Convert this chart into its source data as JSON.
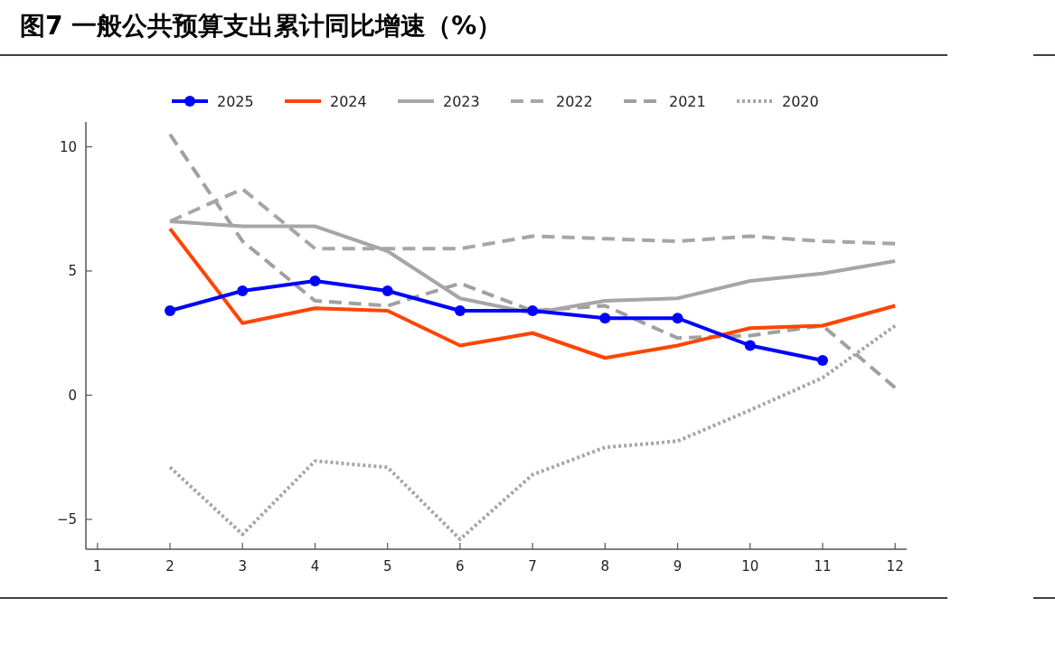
{
  "chart_data": {
    "type": "line",
    "title": "图7  一般公共预算支出累计同比增速（%）",
    "x": [
      2,
      3,
      4,
      5,
      6,
      7,
      8,
      9,
      10,
      11,
      12
    ],
    "xlim": [
      0.84,
      12.16
    ],
    "xticks": [
      1,
      2,
      3,
      4,
      5,
      6,
      7,
      8,
      9,
      10,
      11,
      12
    ],
    "ylim": [
      -6.2,
      11
    ],
    "yticks": [
      -5,
      0,
      5,
      10
    ],
    "grid": false,
    "legend": "top",
    "series": [
      {
        "name": "2025",
        "color": "#0000ff",
        "marker": "circle",
        "line_style": "solid",
        "values": [
          3.4,
          4.2,
          4.6,
          4.2,
          3.4,
          3.4,
          3.1,
          3.1,
          2.0,
          1.4,
          null
        ]
      },
      {
        "name": "2024",
        "color": "#ff4500",
        "line_style": "solid",
        "values": [
          6.7,
          2.9,
          3.5,
          3.4,
          2.0,
          2.5,
          1.5,
          2.0,
          2.7,
          2.8,
          3.6
        ]
      },
      {
        "name": "2023",
        "color": "#a6a6a6",
        "line_style": "solid",
        "values": [
          7.0,
          6.8,
          6.8,
          5.8,
          3.9,
          3.3,
          3.8,
          3.9,
          4.6,
          4.9,
          5.4
        ]
      },
      {
        "name": "2022",
        "color": "#a6a6a6",
        "line_style": "dashed",
        "values": [
          7.0,
          8.3,
          5.9,
          5.9,
          5.9,
          6.4,
          6.3,
          6.2,
          6.4,
          6.2,
          6.1
        ]
      },
      {
        "name": "2021",
        "color": "#a0a0a0",
        "line_style": "dashed",
        "values": [
          10.5,
          6.2,
          3.8,
          3.6,
          4.5,
          3.4,
          3.6,
          2.3,
          2.4,
          2.8,
          0.3
        ]
      },
      {
        "name": "2020",
        "color": "#a6a6a6",
        "line_style": "dotted",
        "values": [
          -2.9,
          -5.6,
          -2.65,
          -2.9,
          -5.8,
          -3.2,
          -2.1,
          -1.85,
          -0.6,
          0.7,
          2.8
        ]
      }
    ]
  }
}
